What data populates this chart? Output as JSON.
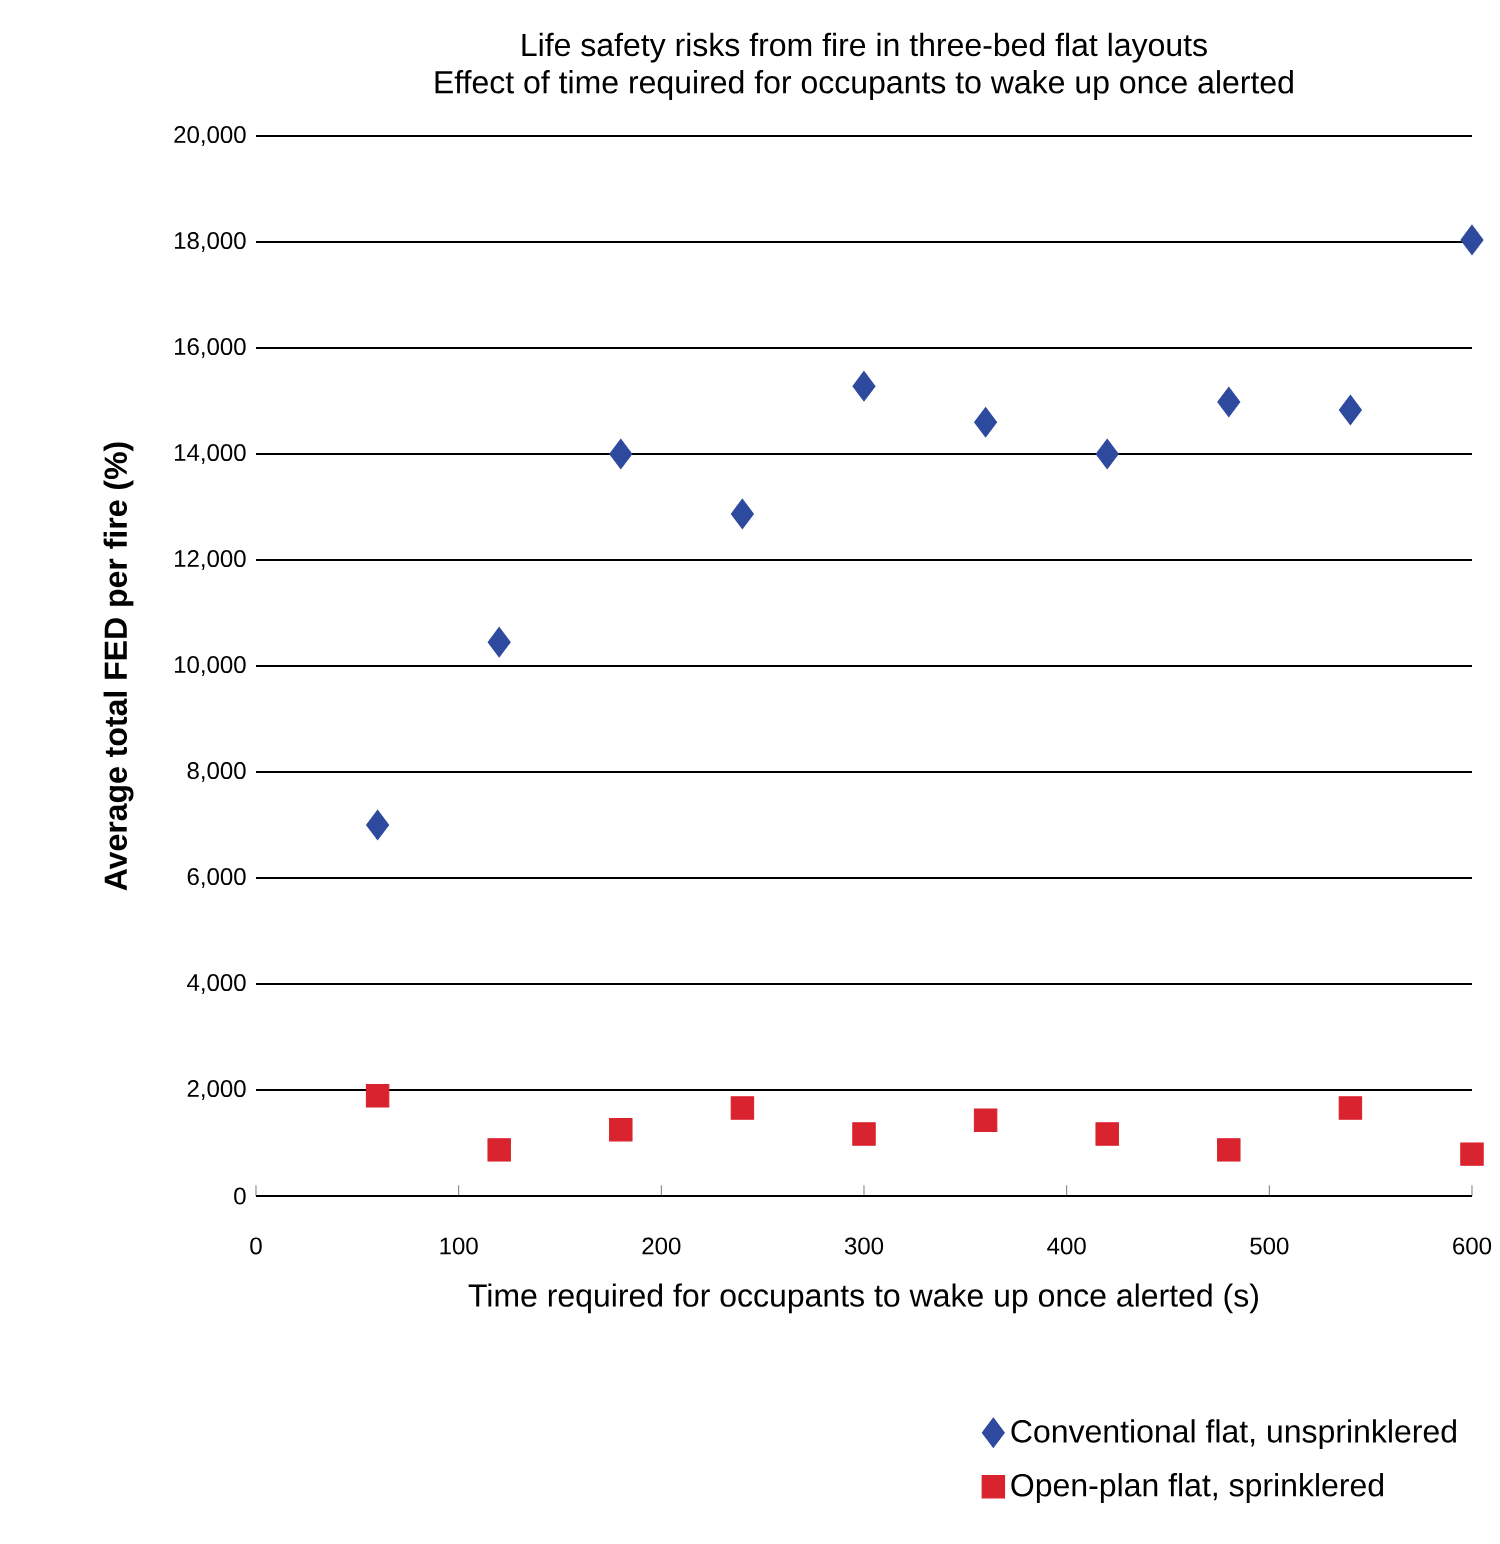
{
  "chart_data": {
    "type": "scatter",
    "title": "Life safety risks from fire in three-bed flat layouts",
    "subtitle": "Effect of time required for occupants to wake up once alerted",
    "xlabel": "Time required for occupants to wake up once alerted (s)",
    "ylabel": "Average total FED per fire (%)",
    "x": [
      60,
      120,
      180,
      240,
      300,
      360,
      420,
      480,
      540,
      600
    ],
    "series": [
      {
        "name": "Conventional flat, unsprinklered",
        "color": "#2e4a9e",
        "marker": "diamond",
        "values": [
          7000,
          10450,
          14000,
          12870,
          15280,
          14600,
          14000,
          14980,
          14830,
          18040
        ]
      },
      {
        "name": "Open-plan flat, sprinklered",
        "color": "#d9232e",
        "marker": "square",
        "values": [
          1890,
          870,
          1250,
          1660,
          1170,
          1430,
          1170,
          870,
          1660,
          790
        ]
      }
    ],
    "xlim": [
      0,
      600
    ],
    "xticks": [
      0,
      100,
      200,
      300,
      400,
      500,
      600
    ],
    "ylim": [
      0,
      20000
    ],
    "yticks": [
      {
        "value": 0,
        "label": "0"
      },
      {
        "value": 2000,
        "label": "2,000"
      },
      {
        "value": 4000,
        "label": "4,000"
      },
      {
        "value": 6000,
        "label": "6,000"
      },
      {
        "value": 8000,
        "label": "8,000"
      },
      {
        "value": 10000,
        "label": "10,000"
      },
      {
        "value": 12000,
        "label": "12,000"
      },
      {
        "value": 14000,
        "label": "14,000"
      },
      {
        "value": 16000,
        "label": "16,000"
      },
      {
        "value": 18000,
        "label": "18,000"
      },
      {
        "value": 20000,
        "label": "20,000"
      }
    ],
    "grid": "y",
    "legend": "bottom right"
  }
}
